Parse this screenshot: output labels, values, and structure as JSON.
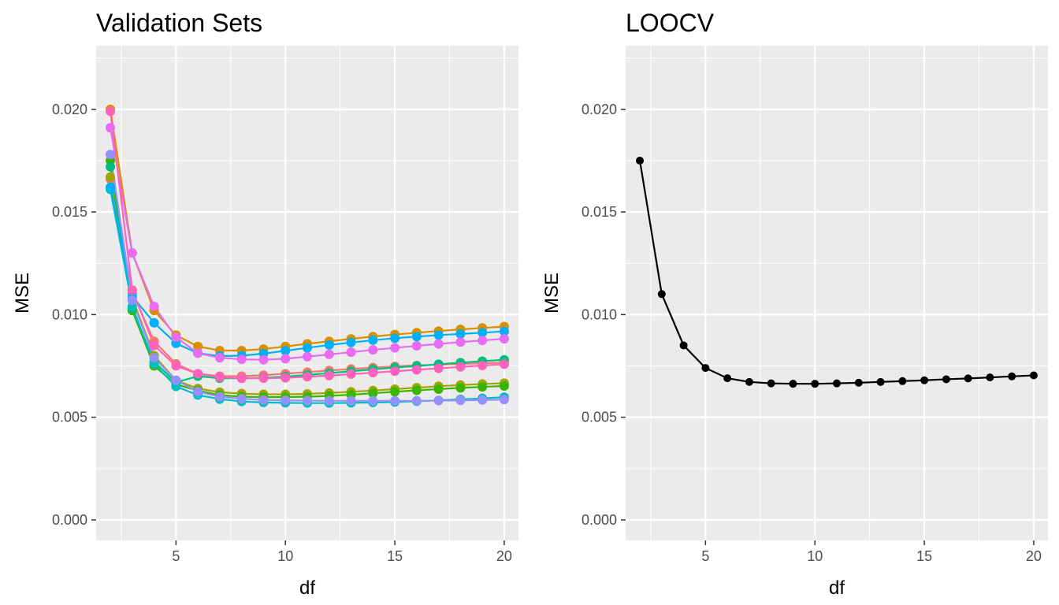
{
  "chart_data": [
    {
      "type": "line",
      "title": "Validation Sets",
      "xlabel": "df",
      "ylabel": "MSE",
      "xlim": [
        1.35,
        20.65
      ],
      "ylim": [
        -0.001,
        0.0231
      ],
      "xticks": [
        5,
        10,
        15,
        20
      ],
      "xtick_labels": [
        "5",
        "10",
        "15",
        "20"
      ],
      "yticks": [
        0.0,
        0.005,
        0.01,
        0.015,
        0.02
      ],
      "ytick_labels": [
        "0.000",
        "0.005",
        "0.010",
        "0.015",
        "0.020"
      ],
      "grid": true,
      "x": [
        2,
        3,
        4,
        5,
        6,
        7,
        8,
        9,
        10,
        11,
        12,
        13,
        14,
        15,
        16,
        17,
        18,
        19,
        20
      ],
      "series": [
        {
          "color": "#F8766D",
          "values": [
            0.0166,
            0.0111,
            0.0087,
            0.0076,
            0.00712,
            0.007,
            0.007,
            0.00705,
            0.00712,
            0.0072,
            0.00728,
            0.00735,
            0.00742,
            0.00748,
            0.00752,
            0.00756,
            0.0076,
            0.00763,
            0.00766
          ]
        },
        {
          "color": "#D89000",
          "values": [
            0.02,
            0.013,
            0.0102,
            0.009,
            0.00845,
            0.00825,
            0.00825,
            0.00832,
            0.00845,
            0.00858,
            0.0087,
            0.00882,
            0.00893,
            0.00903,
            0.00912,
            0.0092,
            0.00928,
            0.00935,
            0.00942
          ]
        },
        {
          "color": "#A3A500",
          "values": [
            0.0167,
            0.0108,
            0.008,
            0.0068,
            0.0064,
            0.00622,
            0.00615,
            0.00612,
            0.00612,
            0.00614,
            0.00618,
            0.00624,
            0.0063,
            0.00637,
            0.00644,
            0.00651,
            0.00657,
            0.00662,
            0.00666
          ]
        },
        {
          "color": "#39B600",
          "values": [
            0.0175,
            0.0102,
            0.0075,
            0.0066,
            0.0063,
            0.00608,
            0.006,
            0.00598,
            0.00598,
            0.006,
            0.00604,
            0.0061,
            0.00617,
            0.00624,
            0.00631,
            0.00637,
            0.00643,
            0.00648,
            0.00652
          ]
        },
        {
          "color": "#00BF7D",
          "values": [
            0.0172,
            0.0103,
            0.0077,
            0.0067,
            0.007,
            0.0069,
            0.0069,
            0.00692,
            0.00698,
            0.00706,
            0.00715,
            0.00724,
            0.00733,
            0.00742,
            0.0075,
            0.00758,
            0.00766,
            0.00773,
            0.0078
          ]
        },
        {
          "color": "#00BFC4",
          "values": [
            0.0161,
            0.0104,
            0.0076,
            0.0065,
            0.00608,
            0.00588,
            0.00577,
            0.00572,
            0.0057,
            0.00569,
            0.00569,
            0.0057,
            0.00572,
            0.00574,
            0.00578,
            0.00582,
            0.00587,
            0.00592,
            0.00598
          ]
        },
        {
          "color": "#00B0F6",
          "values": [
            0.0162,
            0.0109,
            0.0096,
            0.0086,
            0.00812,
            0.00798,
            0.008,
            0.0081,
            0.00824,
            0.00838,
            0.00852,
            0.00864,
            0.00875,
            0.00885,
            0.00893,
            0.009,
            0.00906,
            0.00912,
            0.00918
          ]
        },
        {
          "color": "#9590FF",
          "values": [
            0.0178,
            0.0107,
            0.0079,
            0.0068,
            0.00625,
            0.006,
            0.0059,
            0.00584,
            0.00582,
            0.00581,
            0.0058,
            0.0058,
            0.0058,
            0.0058,
            0.0058,
            0.00581,
            0.00582,
            0.00584,
            0.00586
          ]
        },
        {
          "color": "#E76BF3",
          "values": [
            0.0191,
            0.013,
            0.0104,
            0.0089,
            0.00812,
            0.0079,
            0.00782,
            0.0078,
            0.00785,
            0.00795,
            0.00806,
            0.00817,
            0.00828,
            0.00838,
            0.00848,
            0.00857,
            0.00866,
            0.00874,
            0.00882
          ]
        },
        {
          "color": "#FF62BC",
          "values": [
            0.0199,
            0.0112,
            0.0085,
            0.0075,
            0.00712,
            0.00695,
            0.0069,
            0.0069,
            0.00692,
            0.00697,
            0.00703,
            0.0071,
            0.00717,
            0.00724,
            0.00731,
            0.00738,
            0.00745,
            0.00752,
            0.00758
          ]
        }
      ]
    },
    {
      "type": "line",
      "title": "LOOCV",
      "xlabel": "df",
      "ylabel": "MSE",
      "xlim": [
        1.35,
        20.65
      ],
      "ylim": [
        -0.001,
        0.0231
      ],
      "xticks": [
        5,
        10,
        15,
        20
      ],
      "xtick_labels": [
        "5",
        "10",
        "15",
        "20"
      ],
      "yticks": [
        0.0,
        0.005,
        0.01,
        0.015,
        0.02
      ],
      "ytick_labels": [
        "0.000",
        "0.005",
        "0.010",
        "0.015",
        "0.020"
      ],
      "grid": true,
      "x": [
        2,
        3,
        4,
        5,
        6,
        7,
        8,
        9,
        10,
        11,
        12,
        13,
        14,
        15,
        16,
        17,
        18,
        19,
        20
      ],
      "series": [
        {
          "color": "#000000",
          "values": [
            0.0175,
            0.011,
            0.0085,
            0.0074,
            0.0069,
            0.00672,
            0.00665,
            0.00663,
            0.00663,
            0.00665,
            0.00668,
            0.00672,
            0.00676,
            0.0068,
            0.00685,
            0.00689,
            0.00694,
            0.00699,
            0.00704
          ]
        }
      ]
    }
  ]
}
